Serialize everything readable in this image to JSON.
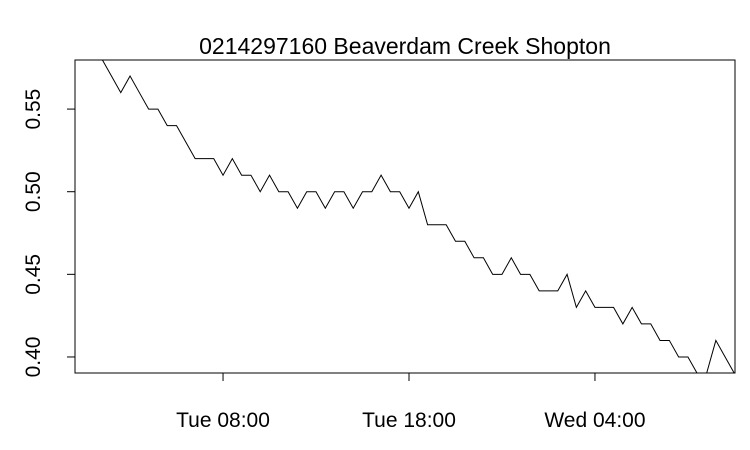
{
  "chart_data": {
    "type": "line",
    "title": "0214297160 Beaverdam Creek Shopton",
    "x": [
      1.5,
      2,
      2.5,
      3,
      3.5,
      4,
      4.5,
      5,
      5.5,
      6,
      6.5,
      7,
      7.5,
      8,
      8.5,
      9,
      9.5,
      10,
      10.5,
      11,
      11.5,
      12,
      12.5,
      13,
      13.5,
      14,
      14.5,
      15,
      15.5,
      16,
      16.5,
      17,
      17.5,
      18,
      18.5,
      19,
      19.5,
      20,
      20.5,
      21,
      21.5,
      22,
      22.5,
      23,
      23.5,
      24,
      24.5,
      25,
      25.5,
      26,
      26.5,
      27,
      27.5,
      28,
      28.5,
      29,
      29.5,
      30,
      30.5,
      31,
      31.5,
      32,
      32.5,
      33,
      33.5,
      34,
      34.5,
      35,
      35.5
    ],
    "values": [
      0.58,
      0.57,
      0.56,
      0.57,
      0.56,
      0.55,
      0.55,
      0.54,
      0.54,
      0.53,
      0.52,
      0.52,
      0.52,
      0.51,
      0.52,
      0.51,
      0.51,
      0.5,
      0.51,
      0.5,
      0.5,
      0.49,
      0.5,
      0.5,
      0.49,
      0.5,
      0.5,
      0.49,
      0.5,
      0.5,
      0.51,
      0.5,
      0.5,
      0.49,
      0.5,
      0.48,
      0.48,
      0.48,
      0.47,
      0.47,
      0.46,
      0.46,
      0.45,
      0.45,
      0.46,
      0.45,
      0.45,
      0.44,
      0.44,
      0.44,
      0.45,
      0.43,
      0.44,
      0.43,
      0.43,
      0.43,
      0.42,
      0.43,
      0.42,
      0.42,
      0.41,
      0.41,
      0.4,
      0.4,
      0.39,
      0.39,
      0.41,
      0.4,
      0.39
    ],
    "color": "#000000",
    "xlim": [
      0.04,
      35.53
    ],
    "xticks": [
      {
        "value": 8,
        "label": "Tue 08:00"
      },
      {
        "value": 18,
        "label": "Tue 18:00"
      },
      {
        "value": 28,
        "label": "Wed 04:00"
      }
    ],
    "ylim": [
      0.3903,
      0.5797
    ],
    "yticks": [
      {
        "value": 0.4,
        "label": "0.40"
      },
      {
        "value": 0.45,
        "label": "0.45"
      },
      {
        "value": 0.5,
        "label": "0.50"
      },
      {
        "value": 0.55,
        "label": "0.55"
      }
    ]
  }
}
